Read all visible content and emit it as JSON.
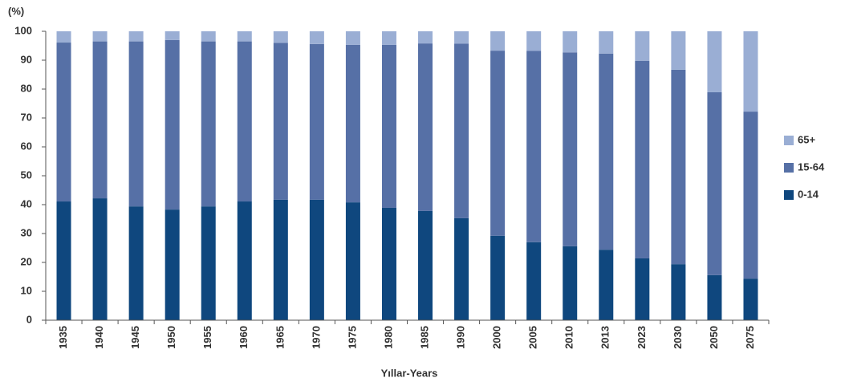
{
  "chart_data": {
    "type": "stacked_bar",
    "y_unit_label": "(%)",
    "x_label": "Yıllar-Years",
    "categories": [
      "1935",
      "1940",
      "1945",
      "1950",
      "1955",
      "1960",
      "1965",
      "1970",
      "1975",
      "1980",
      "1985",
      "1990",
      "2000",
      "2005",
      "2010",
      "2013",
      "2023",
      "2030",
      "2050",
      "2075"
    ],
    "series": [
      {
        "name": "0-14",
        "color": "#0f477e",
        "values": [
          41.1,
          42.2,
          39.4,
          38.3,
          39.4,
          41.1,
          41.7,
          41.7,
          40.8,
          38.9,
          37.8,
          35.3,
          29.2,
          27.0,
          25.6,
          24.4,
          21.4,
          19.4,
          15.6,
          14.4
        ]
      },
      {
        "name": "15-64",
        "color": "#5670a6",
        "values": [
          55.0,
          54.3,
          57.1,
          58.7,
          57.1,
          55.4,
          54.3,
          53.9,
          54.5,
          56.4,
          58.0,
          60.4,
          64.1,
          66.2,
          67.1,
          67.9,
          68.4,
          67.3,
          63.3,
          57.8
        ]
      },
      {
        "name": "65+",
        "color": "#9aaed4",
        "values": [
          3.9,
          3.5,
          3.5,
          3.0,
          3.5,
          3.5,
          4.0,
          4.4,
          4.7,
          4.7,
          4.2,
          4.3,
          6.7,
          6.8,
          7.3,
          7.7,
          10.2,
          13.3,
          21.1,
          27.8
        ]
      }
    ],
    "ylim": [
      0,
      100
    ],
    "yticks": [
      0,
      10,
      20,
      30,
      40,
      50,
      60,
      70,
      80,
      90,
      100
    ],
    "grid": false,
    "legend": "right"
  }
}
